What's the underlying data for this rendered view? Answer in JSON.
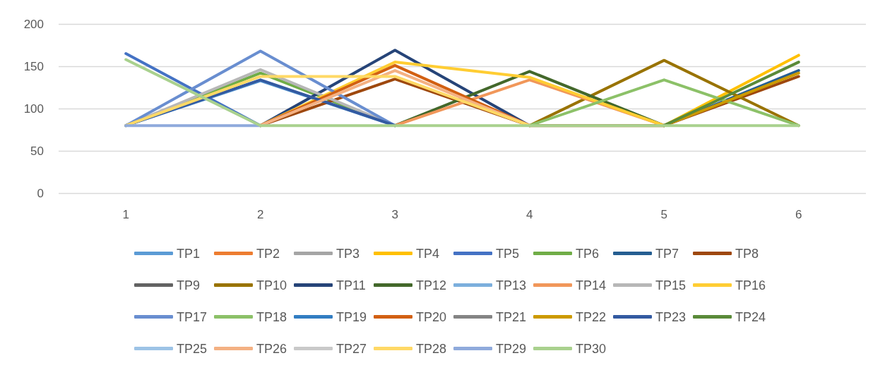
{
  "chart_data": {
    "type": "line",
    "categories": [
      "1",
      "2",
      "3",
      "4",
      "5",
      "6"
    ],
    "ylim": [
      0,
      200
    ],
    "yticks": [
      0,
      50,
      100,
      150,
      200
    ],
    "grid": "y",
    "legend": "bottom",
    "marker": "none",
    "line_style": "solid",
    "series": [
      {
        "name": "TP1",
        "color": "#5b9bd5",
        "values": [
          80,
          133,
          80,
          null,
          null,
          null
        ]
      },
      {
        "name": "TP2",
        "color": "#ed7d31",
        "values": [
          null,
          null,
          null,
          null,
          null,
          null
        ]
      },
      {
        "name": "TP3",
        "color": "#a5a5a5",
        "values": [
          null,
          null,
          null,
          null,
          null,
          null
        ]
      },
      {
        "name": "TP4",
        "color": "#ffc000",
        "values": [
          null,
          null,
          null,
          null,
          80,
          163
        ]
      },
      {
        "name": "TP5",
        "color": "#4472c4",
        "values": [
          165,
          80,
          null,
          null,
          null,
          null
        ]
      },
      {
        "name": "TP6",
        "color": "#70ad47",
        "values": [
          80,
          142,
          80,
          null,
          null,
          null
        ]
      },
      {
        "name": "TP7",
        "color": "#255e91",
        "values": [
          null,
          null,
          null,
          null,
          80,
          145
        ]
      },
      {
        "name": "TP8",
        "color": "#9e480e",
        "values": [
          null,
          80,
          135,
          80,
          80,
          138
        ]
      },
      {
        "name": "TP9",
        "color": "#636363",
        "values": [
          null,
          null,
          null,
          null,
          null,
          null
        ]
      },
      {
        "name": "TP10",
        "color": "#997300",
        "values": [
          null,
          null,
          null,
          80,
          157,
          80
        ]
      },
      {
        "name": "TP11",
        "color": "#264478",
        "values": [
          null,
          80,
          169,
          80,
          null,
          null
        ]
      },
      {
        "name": "TP12",
        "color": "#43682b",
        "values": [
          null,
          null,
          80,
          144,
          80,
          null
        ]
      },
      {
        "name": "TP13",
        "color": "#7cafdd",
        "values": [
          null,
          null,
          null,
          null,
          null,
          null
        ]
      },
      {
        "name": "TP14",
        "color": "#f1975a",
        "values": [
          null,
          null,
          80,
          134,
          80,
          null
        ]
      },
      {
        "name": "TP15",
        "color": "#b7b7b7",
        "values": [
          80,
          146,
          80,
          null,
          null,
          null
        ]
      },
      {
        "name": "TP16",
        "color": "#ffcd33",
        "values": [
          null,
          80,
          155,
          137,
          80,
          null
        ]
      },
      {
        "name": "TP17",
        "color": "#698ed0",
        "values": [
          80,
          168,
          80,
          null,
          null,
          null
        ]
      },
      {
        "name": "TP18",
        "color": "#8cc168",
        "values": [
          null,
          null,
          null,
          80,
          134,
          80
        ]
      },
      {
        "name": "TP19",
        "color": "#327dc2",
        "values": [
          null,
          null,
          null,
          null,
          null,
          null
        ]
      },
      {
        "name": "TP20",
        "color": "#d26012",
        "values": [
          null,
          80,
          151,
          80,
          null,
          null
        ]
      },
      {
        "name": "TP21",
        "color": "#848484",
        "values": [
          null,
          null,
          null,
          null,
          null,
          null
        ]
      },
      {
        "name": "TP22",
        "color": "#cc9a00",
        "values": [
          null,
          null,
          null,
          null,
          80,
          142
        ]
      },
      {
        "name": "TP23",
        "color": "#335aa1",
        "values": [
          80,
          134,
          80,
          null,
          null,
          null
        ]
      },
      {
        "name": "TP24",
        "color": "#5a8a39",
        "values": [
          null,
          null,
          null,
          null,
          80,
          155
        ]
      },
      {
        "name": "TP25",
        "color": "#9dc3e6",
        "values": [
          null,
          null,
          null,
          null,
          null,
          null
        ]
      },
      {
        "name": "TP26",
        "color": "#f4b183",
        "values": [
          null,
          80,
          145,
          80,
          null,
          null
        ]
      },
      {
        "name": "TP27",
        "color": "#c9c9c9",
        "values": [
          null,
          null,
          null,
          null,
          null,
          null
        ]
      },
      {
        "name": "TP28",
        "color": "#ffd966",
        "values": [
          80,
          138,
          138,
          80,
          null,
          null
        ]
      },
      {
        "name": "TP29",
        "color": "#8faadc",
        "values": [
          80,
          80,
          null,
          null,
          null,
          null
        ]
      },
      {
        "name": "TP30",
        "color": "#a9d18e",
        "values": [
          158,
          80,
          80,
          80,
          80,
          80
        ]
      }
    ]
  }
}
